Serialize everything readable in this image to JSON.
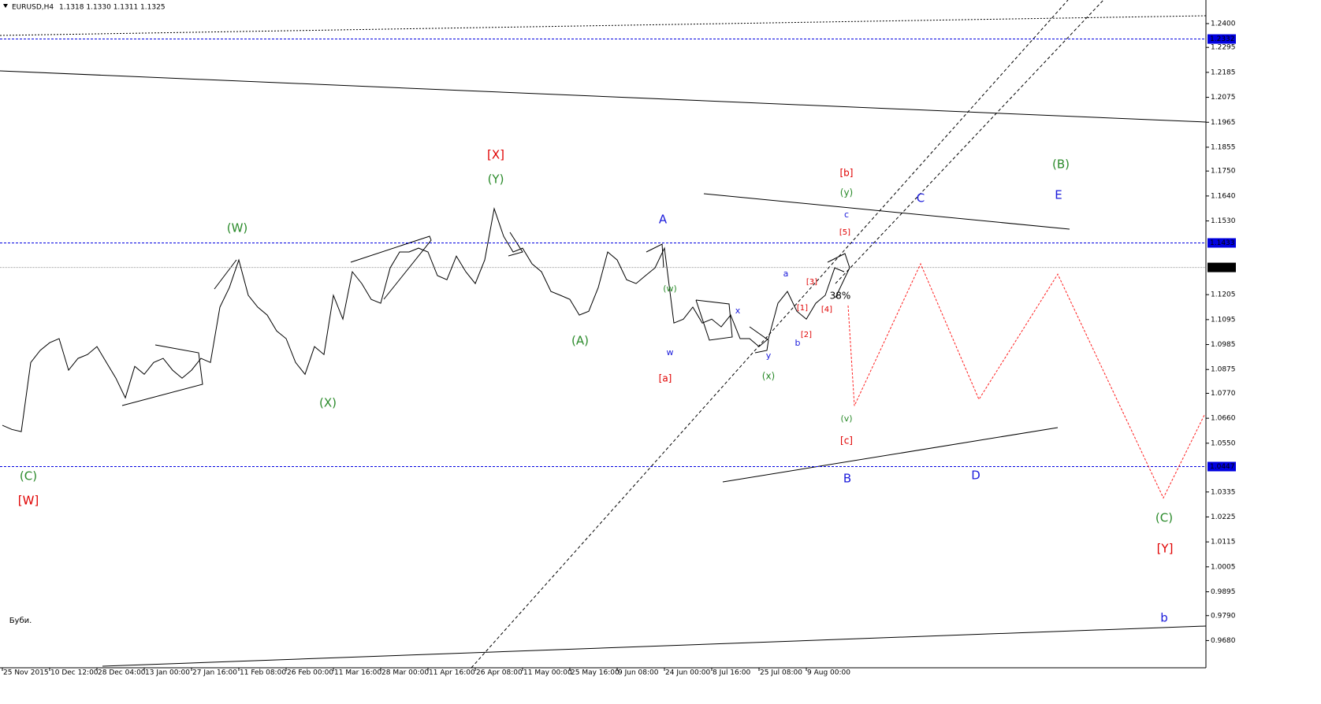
{
  "chart_data": {
    "type": "line",
    "title": "EURUSD,H4",
    "subtitle": "1.1318 1.1330 1.1311 1.1325",
    "categories": [
      "25 Nov 2015",
      null,
      null,
      null,
      null,
      "10 Dec 12:00",
      null,
      null,
      null,
      null,
      "28 Dec 04:00",
      null,
      null,
      null,
      null,
      "13 Jan 00:00",
      null,
      null,
      null,
      null,
      "27 Jan 16:00",
      null,
      null,
      null,
      null,
      "11 Feb 08:00",
      null,
      null,
      null,
      null,
      "26 Feb 00:00",
      null,
      null,
      null,
      null,
      "11 Mar 16:00",
      null,
      null,
      null,
      null,
      "28 Mar 00:00",
      null,
      null,
      null,
      null,
      "11 Apr 16:00",
      null,
      null,
      null,
      null,
      "26 Apr 08:00",
      null,
      null,
      null,
      null,
      "11 May 00:00",
      null,
      null,
      null,
      null,
      "25 May 16:00",
      null,
      null,
      null,
      null,
      "9 Jun 08:00",
      null,
      null,
      null,
      null,
      "24 Jun 00:00",
      null,
      null,
      null,
      null,
      "8 Jul 16:00",
      null,
      null,
      null,
      null,
      "25 Jul 08:00",
      null,
      null,
      null,
      null,
      "9 Aug 00:00",
      null,
      null,
      null,
      null
    ],
    "series": [
      {
        "name": "EURUSD",
        "color": "#000000",
        "values": [
          1.0629,
          1.0611,
          1.0601,
          1.0906,
          1.0959,
          1.0993,
          1.1011,
          1.0872,
          1.0924,
          1.0941,
          1.0976,
          1.0906,
          1.0837,
          1.075,
          1.0889,
          1.0854,
          1.0906,
          1.0924,
          1.0872,
          1.0837,
          1.0872,
          1.0924,
          1.0906,
          1.115,
          1.1236,
          1.1358,
          1.1202,
          1.115,
          1.1115,
          1.1045,
          1.1011,
          1.0906,
          1.0854,
          1.0976,
          1.0941,
          1.1202,
          1.1097,
          1.1306,
          1.1254,
          1.1184,
          1.1167,
          1.1323,
          1.1393,
          1.1393,
          1.141,
          1.1393,
          1.1289,
          1.1271,
          1.1375,
          1.1306,
          1.1254,
          1.1358,
          1.1584,
          1.1462,
          1.1393,
          1.141,
          1.1341,
          1.1306,
          1.1219,
          1.1202,
          1.1184,
          1.1115,
          1.1132,
          1.1236,
          1.1393,
          1.1358,
          1.1271,
          1.1254,
          1.1289,
          1.1323,
          1.141,
          1.108,
          1.1097,
          1.115,
          1.108,
          1.1097,
          1.1063,
          1.1115,
          1.1011,
          1.1011,
          1.0976,
          1.1011,
          1.1167,
          1.1219,
          1.1132,
          1.1097,
          1.1167,
          1.1202,
          1.1323,
          1.1306
        ]
      },
      {
        "name": "forecast",
        "color": "#ff2020",
        "x": [
          89.42,
          90.08,
          97.08,
          103.25,
          111.58,
          122.75,
          127.08
        ],
        "values": [
          1.1157,
          1.0715,
          1.1341,
          1.0743,
          1.1295,
          1.0309,
          1.0674
        ]
      }
    ],
    "levels": [
      {
        "value": 1.2332,
        "color": "#0000e0"
      },
      {
        "value": 1.1433,
        "color": "#0000e0"
      },
      {
        "value": 1.1325,
        "color": "#000000"
      },
      {
        "value": 1.0447,
        "color": "#0000e0"
      }
    ],
    "annotations": [
      {
        "text": "(W)",
        "color": "#2a8a2a"
      },
      {
        "text": "[X]",
        "color": "#e00000"
      },
      {
        "text": "(Y)",
        "color": "#2a8a2a"
      },
      {
        "text": "(X)",
        "color": "#2a8a2a"
      },
      {
        "text": "(C)",
        "color": "#2a8a2a"
      },
      {
        "text": "[W]",
        "color": "#e00000"
      },
      {
        "text": "(A)",
        "color": "#2a8a2a"
      },
      {
        "text": "A",
        "color": "#1a1adb"
      },
      {
        "text": "(w)",
        "color": "#2a8a2a"
      },
      {
        "text": "w",
        "color": "#1a1adb"
      },
      {
        "text": "[a]",
        "color": "#e00000"
      },
      {
        "text": "x",
        "color": "#1a1adb"
      },
      {
        "text": "y",
        "color": "#1a1adb"
      },
      {
        "text": "(x)",
        "color": "#2a8a2a"
      },
      {
        "text": "a",
        "color": "#1a1adb"
      },
      {
        "text": "b",
        "color": "#1a1adb"
      },
      {
        "text": "[1]",
        "color": "#e00000"
      },
      {
        "text": "[2]",
        "color": "#e00000"
      },
      {
        "text": "[3]",
        "color": "#e00000"
      },
      {
        "text": "[4]",
        "color": "#e00000"
      },
      {
        "text": "[5]",
        "color": "#e00000"
      },
      {
        "text": "38%",
        "color": "#000000"
      },
      {
        "text": "[b]",
        "color": "#e00000"
      },
      {
        "text": "(y)",
        "color": "#2a8a2a"
      },
      {
        "text": "c",
        "color": "#1a1adb"
      },
      {
        "text": "C",
        "color": "#1a1adb"
      },
      {
        "text": "(B)",
        "color": "#2a8a2a"
      },
      {
        "text": "E",
        "color": "#1a1adb"
      },
      {
        "text": "(v)",
        "color": "#2a8a2a"
      },
      {
        "text": "[c]",
        "color": "#e00000"
      },
      {
        "text": "B",
        "color": "#1a1adb"
      },
      {
        "text": "D",
        "color": "#1a1adb"
      },
      {
        "text": "(C)",
        "color": "#2a8a2a"
      },
      {
        "text": "[Y]",
        "color": "#e00000"
      },
      {
        "text": "b",
        "color": "#1a1adb"
      },
      {
        "text": "Буби.",
        "color": "#000000"
      }
    ],
    "xlim": [
      -0.25,
      127.25
    ],
    "ylim": [
      0.956,
      1.2504
    ],
    "yticks": [
      {
        "value": 1.24,
        "label": "1.2400"
      },
      1.2295,
      1.2185,
      1.2075,
      1.1965,
      1.1855,
      {
        "value": 1.175,
        "label": "1.1750"
      },
      {
        "value": 1.164,
        "label": "1.1640"
      },
      {
        "value": 1.153,
        "label": "1.1530"
      },
      1.1205,
      1.1095,
      1.0985,
      1.0875,
      {
        "value": 1.077,
        "label": "1.0770"
      },
      {
        "value": 1.066,
        "label": "1.0660"
      },
      {
        "value": 1.055,
        "label": "1.0550"
      },
      1.0335,
      1.0225,
      1.0115,
      1.0005,
      0.9895,
      {
        "value": 0.979,
        "label": "0.9790"
      },
      {
        "value": 0.968,
        "label": "0.9680"
      }
    ],
    "grid": false
  }
}
